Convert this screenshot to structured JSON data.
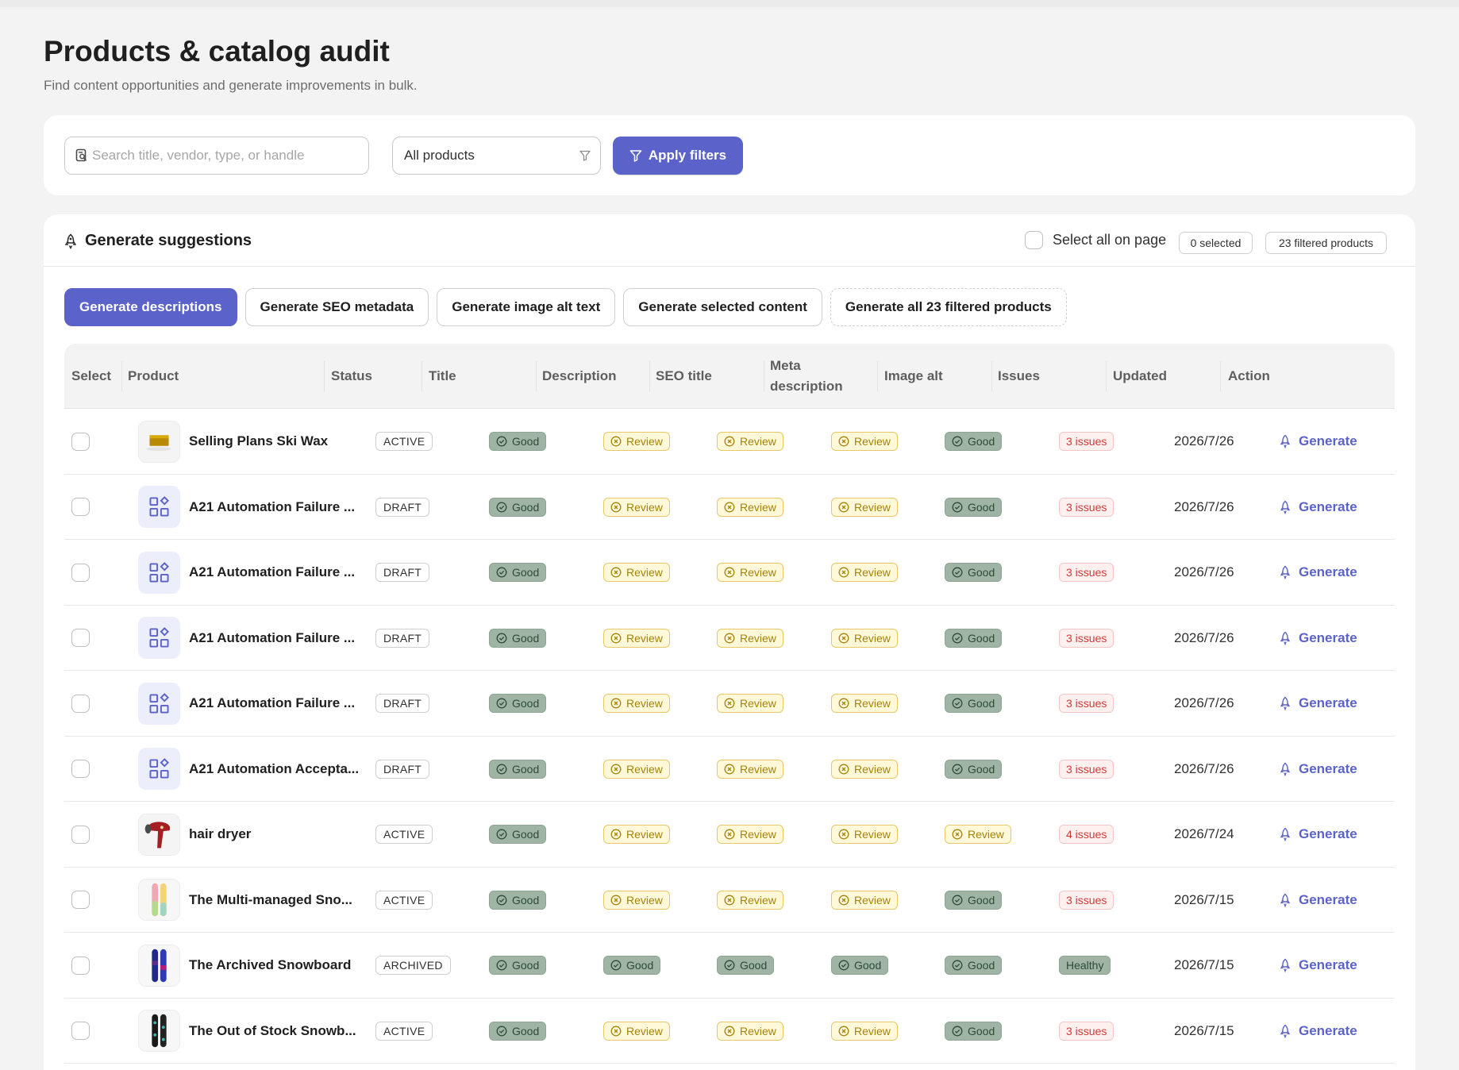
{
  "page": {
    "title": "Products & catalog audit",
    "subtitle": "Find content opportunities and generate improvements in bulk."
  },
  "filters": {
    "search_placeholder": "Search title, vendor, type, or handle",
    "search_value": "",
    "product_filter": "All products",
    "apply_label": "Apply filters"
  },
  "generate": {
    "title": "Generate suggestions",
    "select_all_label": "Select all on page",
    "selected_count": "0 selected",
    "filtered_count": "23 filtered products",
    "tabs": [
      {
        "label": "Generate descriptions",
        "active": true
      },
      {
        "label": "Generate SEO metadata",
        "active": false
      },
      {
        "label": "Generate image alt text",
        "active": false
      },
      {
        "label": "Generate selected content",
        "active": false
      },
      {
        "label": "Generate all 23 filtered products",
        "active": false
      }
    ]
  },
  "table": {
    "columns": [
      "Select",
      "Product",
      "Status",
      "Title",
      "Description",
      "SEO title",
      "Meta description",
      "Image alt",
      "Issues",
      "Updated",
      "Action"
    ],
    "action_label": "Generate",
    "rows": [
      {
        "name": "Selling Plans Ski Wax",
        "thumb": "wax",
        "status": "ACTIVE",
        "title": "Good",
        "description": "Review",
        "seo_title": "Review",
        "meta": "Review",
        "image_alt": "Good",
        "issues": "3 issues",
        "updated": "2026/7/26"
      },
      {
        "name": "A21 Automation Failure ...",
        "thumb": "placeholder",
        "status": "DRAFT",
        "title": "Good",
        "description": "Review",
        "seo_title": "Review",
        "meta": "Review",
        "image_alt": "Good",
        "issues": "3 issues",
        "updated": "2026/7/26"
      },
      {
        "name": "A21 Automation Failure ...",
        "thumb": "placeholder",
        "status": "DRAFT",
        "title": "Good",
        "description": "Review",
        "seo_title": "Review",
        "meta": "Review",
        "image_alt": "Good",
        "issues": "3 issues",
        "updated": "2026/7/26"
      },
      {
        "name": "A21 Automation Failure ...",
        "thumb": "placeholder",
        "status": "DRAFT",
        "title": "Good",
        "description": "Review",
        "seo_title": "Review",
        "meta": "Review",
        "image_alt": "Good",
        "issues": "3 issues",
        "updated": "2026/7/26"
      },
      {
        "name": "A21 Automation Failure ...",
        "thumb": "placeholder",
        "status": "DRAFT",
        "title": "Good",
        "description": "Review",
        "seo_title": "Review",
        "meta": "Review",
        "image_alt": "Good",
        "issues": "3 issues",
        "updated": "2026/7/26"
      },
      {
        "name": "A21 Automation Accepta...",
        "thumb": "placeholder",
        "status": "DRAFT",
        "title": "Good",
        "description": "Review",
        "seo_title": "Review",
        "meta": "Review",
        "image_alt": "Good",
        "issues": "3 issues",
        "updated": "2026/7/26"
      },
      {
        "name": "hair dryer",
        "thumb": "dryer",
        "status": "ACTIVE",
        "title": "Good",
        "description": "Review",
        "seo_title": "Review",
        "meta": "Review",
        "image_alt": "Review",
        "issues": "4 issues",
        "updated": "2026/7/24"
      },
      {
        "name": "The Multi-managed Sno...",
        "thumb": "board-pastel",
        "status": "ACTIVE",
        "title": "Good",
        "description": "Review",
        "seo_title": "Review",
        "meta": "Review",
        "image_alt": "Good",
        "issues": "3 issues",
        "updated": "2026/7/15"
      },
      {
        "name": "The Archived Snowboard",
        "thumb": "board-blue",
        "status": "ARCHIVED",
        "title": "Good",
        "description": "Good",
        "seo_title": "Good",
        "meta": "Good",
        "image_alt": "Good",
        "issues": "Healthy",
        "updated": "2026/7/15"
      },
      {
        "name": "The Out of Stock Snowb...",
        "thumb": "board-dark",
        "status": "ACTIVE",
        "title": "Good",
        "description": "Review",
        "seo_title": "Review",
        "meta": "Review",
        "image_alt": "Good",
        "issues": "3 issues",
        "updated": "2026/7/15"
      }
    ]
  },
  "colors": {
    "accent": "#5b62c9",
    "good_bg": "#9fb4a4",
    "review_bg": "#fff8d9",
    "review_text": "#a4830a",
    "issues_text": "#cf3a3a"
  },
  "icons": [
    "search-icon",
    "filter-icon",
    "rocket-icon",
    "check-circle-icon",
    "x-circle-icon",
    "product-placeholder-icon"
  ]
}
